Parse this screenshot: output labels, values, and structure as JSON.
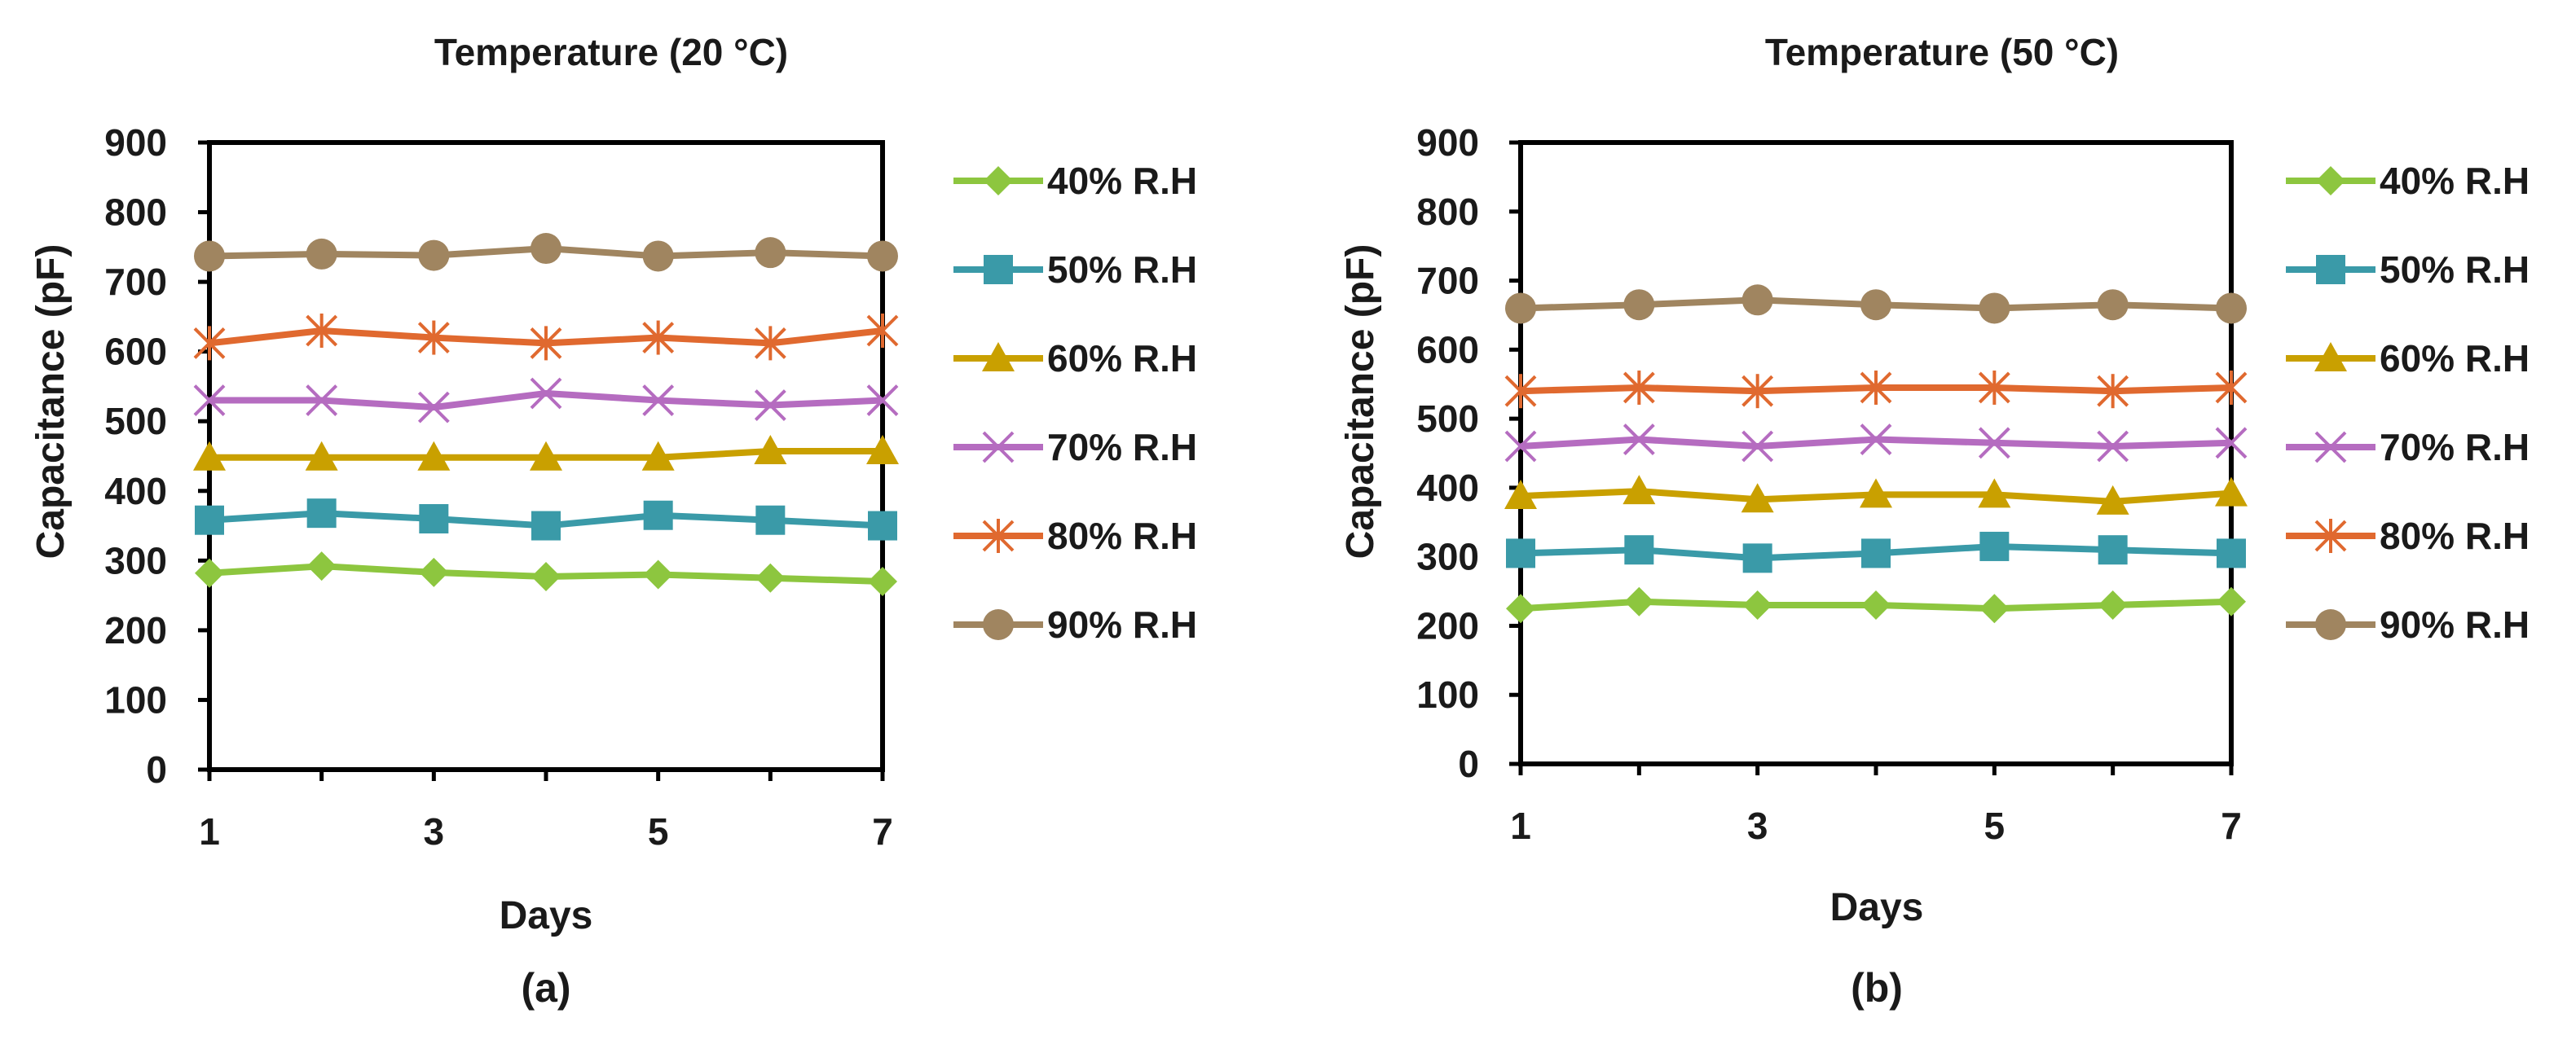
{
  "figure": {
    "panels": [
      {
        "title": "Temperature (20 °C)",
        "caption": "(a)",
        "xlabel": "Days",
        "ylabel": "Capacitance (pF)",
        "x_ticks": [
          "1",
          "3",
          "5",
          "7"
        ],
        "y_ticks": [
          "0",
          "100",
          "200",
          "300",
          "400",
          "500",
          "600",
          "700",
          "800",
          "900"
        ],
        "legend": [
          "40% R.H",
          "50% R.H",
          "60% R.H",
          "70% R.H",
          "80% R.H",
          "90% R.H"
        ]
      },
      {
        "title": "Temperature (50 °C)",
        "caption": "(b)",
        "xlabel": "Days",
        "ylabel": "Capacitance (pF)",
        "x_ticks": [
          "1",
          "3",
          "5",
          "7"
        ],
        "y_ticks": [
          "0",
          "100",
          "200",
          "300",
          "400",
          "500",
          "600",
          "700",
          "800",
          "900"
        ],
        "legend": [
          "40%  R.H",
          "50% R.H",
          "60% R.H",
          "70% R.H",
          "80% R.H",
          "90% R.H"
        ]
      }
    ]
  },
  "chart_data": [
    {
      "type": "line",
      "title": "Temperature (20 °C)",
      "xlabel": "Days",
      "ylabel": "Capacitance (pF)",
      "xlim": [
        1,
        7
      ],
      "ylim": [
        0,
        900
      ],
      "grid": false,
      "legend_position": "right",
      "x": [
        1,
        2,
        3,
        4,
        5,
        6,
        7
      ],
      "series": [
        {
          "name": "40% R.H",
          "color": "#8dc63f",
          "marker": "diamond",
          "values": [
            282,
            292,
            283,
            277,
            280,
            275,
            270
          ]
        },
        {
          "name": "50% R.H",
          "color": "#3a9aa8",
          "marker": "square",
          "values": [
            358,
            368,
            360,
            350,
            365,
            358,
            350
          ]
        },
        {
          "name": "60% R.H",
          "color": "#c9a000",
          "marker": "triangle",
          "values": [
            448,
            448,
            448,
            448,
            448,
            457,
            457
          ]
        },
        {
          "name": "70% R.H",
          "color": "#b56cc0",
          "marker": "x",
          "values": [
            530,
            530,
            520,
            540,
            530,
            523,
            530
          ]
        },
        {
          "name": "80% R.H",
          "color": "#e0692f",
          "marker": "star",
          "values": [
            612,
            630,
            620,
            612,
            620,
            612,
            630
          ]
        },
        {
          "name": "90% R.H",
          "color": "#a08560",
          "marker": "circle",
          "values": [
            737,
            740,
            738,
            748,
            737,
            742,
            737
          ]
        }
      ]
    },
    {
      "type": "line",
      "title": "Temperature (50 °C)",
      "xlabel": "Days",
      "ylabel": "Capacitance (pF)",
      "xlim": [
        1,
        7
      ],
      "ylim": [
        0,
        900
      ],
      "grid": false,
      "legend_position": "right",
      "x": [
        1,
        2,
        3,
        4,
        5,
        6,
        7
      ],
      "series": [
        {
          "name": "40%  R.H",
          "color": "#8dc63f",
          "marker": "diamond",
          "values": [
            225,
            235,
            230,
            230,
            225,
            230,
            235
          ]
        },
        {
          "name": "50% R.H",
          "color": "#3a9aa8",
          "marker": "square",
          "values": [
            305,
            310,
            298,
            305,
            315,
            310,
            305
          ]
        },
        {
          "name": "60% R.H",
          "color": "#c9a000",
          "marker": "triangle",
          "values": [
            388,
            395,
            383,
            390,
            390,
            380,
            392
          ]
        },
        {
          "name": "70% R.H",
          "color": "#b56cc0",
          "marker": "x",
          "values": [
            460,
            470,
            460,
            470,
            465,
            460,
            465
          ]
        },
        {
          "name": "80% R.H",
          "color": "#e0692f",
          "marker": "star",
          "values": [
            540,
            545,
            540,
            545,
            545,
            540,
            545
          ]
        },
        {
          "name": "90% R.H",
          "color": "#a08560",
          "marker": "circle",
          "values": [
            660,
            665,
            672,
            665,
            660,
            665,
            660
          ]
        }
      ]
    }
  ]
}
